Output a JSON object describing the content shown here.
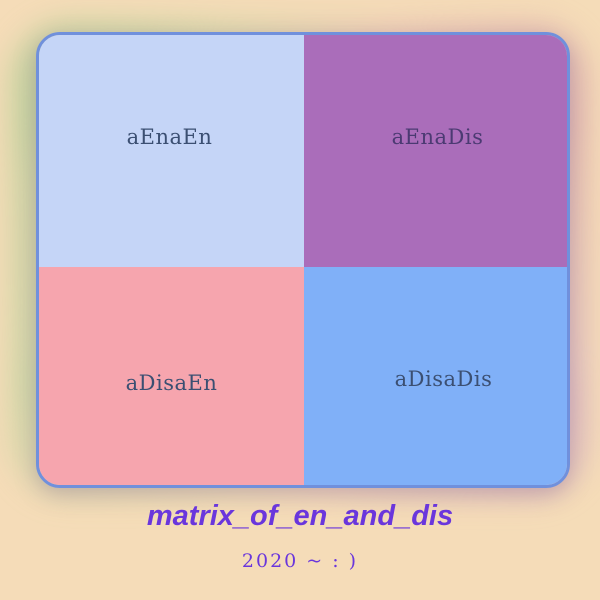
{
  "matrix": {
    "cells": [
      {
        "label": "aEnaEn",
        "color": "#c5d5f7"
      },
      {
        "label": "aEnaDis",
        "color": "#aa6dba"
      },
      {
        "label": "aDisaEn",
        "color": "#f6a5ae"
      },
      {
        "label": "aDisaDis",
        "color": "#80b0f8"
      }
    ],
    "border_color": "#7090dc"
  },
  "caption": {
    "title": "matrix_of_en_and_dis",
    "subtitle": "2020 ~ : )"
  },
  "colors": {
    "background": "#f5dcb8",
    "caption": "#6a36dc"
  }
}
